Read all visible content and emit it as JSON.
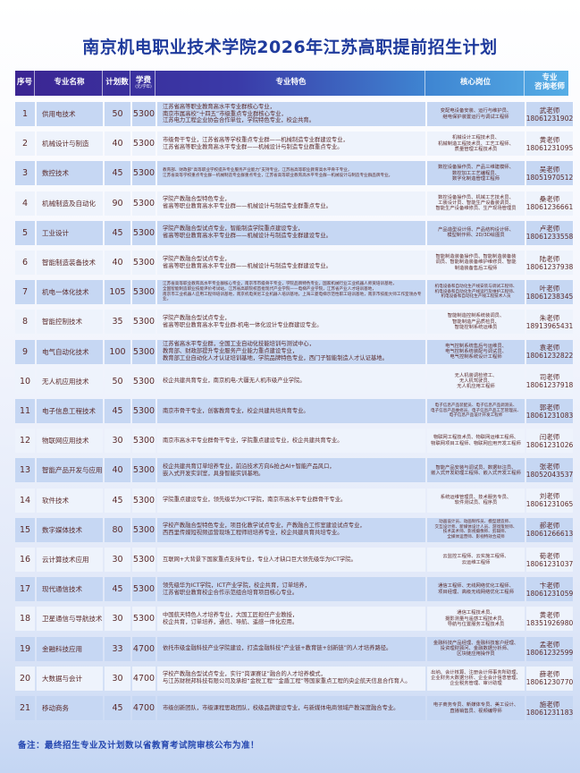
{
  "title": "南京机电职业技术学院2026年江苏高职提前招生计划",
  "headers": {
    "num": "序号",
    "name": "专业名称",
    "plan": "计划数",
    "fee": "学费",
    "fee_unit": "(元/学年)",
    "features": "专业特色",
    "positions": "核心岗位",
    "teacher_1": "专业",
    "teacher_2": "咨询老师"
  },
  "colors": {
    "header_start": "#3b2592",
    "header_end": "#56aee6",
    "row_odd": "#c6d7f3",
    "row_even": "#eef3fc",
    "title": "#1e3a9c",
    "text": "#5b2b2b"
  },
  "rows": [
    {
      "num": "1",
      "name": "供用电技术",
      "plan": "50",
      "fee": "5300",
      "features": [
        "江苏省高等职业教育高水平专业群核心专业，",
        "南京市属高校“十四五”市级重点专业群核心专业，",
        "江苏电力工程企业协会合作单位，学院特色专业，校企共育。"
      ],
      "positions": [
        "变配电设备安装、运行与维护员、",
        "继电保护装置运行与调试工程师"
      ],
      "teacher": "武老师",
      "phone": "18061231902"
    },
    {
      "num": "2",
      "name": "机械设计与制造",
      "plan": "40",
      "fee": "5300",
      "features": [
        "市级骨干专业，江苏省高等学校重点专业群——机械制造专业群建设专业，",
        "江苏省高等职业教育高水平专业群——机械设计与制造专业群重点专业。"
      ],
      "positions": [
        "机械设计工程技术员、",
        "机械制造工程技术员、工艺工程师、",
        "质量管理工程技术员"
      ],
      "teacher": "黄老师",
      "phone": "18061231095"
    },
    {
      "num": "3",
      "name": "数控技术",
      "plan": "45",
      "fee": "5300",
      "tiny": true,
      "features": [
        "教育部、财政部“高等职业学校提升专业服务产业能力”支持专业，江苏省高等职业教育高水平骨干专业，",
        "江苏省高等学校重点专业群—机械制造专业群重点专业，江苏省高等职业教育高水平专业群—机械设计与制造专业群品牌专业。"
      ],
      "positions": [
        "数控设备操作员、产品三维建模师、",
        "数控加工工艺编程员、",
        "数字化制造管理工程师"
      ],
      "teacher": "吴老师",
      "phone": "18051970512"
    },
    {
      "num": "4",
      "name": "机械制造及自动化",
      "plan": "90",
      "fee": "5300",
      "features": [
        "学院产教融合型特色专业，",
        "省高等职业教育高水平专业群——机械设计与制造专业群重点专业。"
      ],
      "positions": [
        "数控设备操作员、机械工艺技术员、",
        "工装设计员、智能生产设备装调员、",
        "智能生产设备维修员、生产现场管理员"
      ],
      "teacher": "桑老师",
      "phone": "18061236661"
    },
    {
      "num": "5",
      "name": "工业设计",
      "plan": "45",
      "fee": "5300",
      "features": [
        "学院产教融合型试点专业，智能制造学院重点建设专业，",
        "省高等职业教育高水平专业群——机械设计与制造专业群建设专业。"
      ],
      "positions": [
        "产品造型设计师、产品结构设计师、",
        "模型制作师、2D/3D绘图员"
      ],
      "teacher": "卢老师",
      "phone": "18061233558"
    },
    {
      "num": "6",
      "name": "智能制造装备技术",
      "plan": "40",
      "fee": "5300",
      "features": [
        "学院产教融合型试点专业，",
        "省高等职业教育高水平专业群——机械设计与制造专业群建设专业。"
      ],
      "positions": [
        "智能制造装备操作员、智能制造装备装",
        "调员、智能制造装备维护维修员、智能",
        "制造装备售后工程师"
      ],
      "teacher": "陆老师",
      "phone": "18061237938"
    },
    {
      "num": "7",
      "name": "机电一体化技术",
      "plan": "105",
      "fee": "5300",
      "tiny": true,
      "features": [
        "江苏省高等职业教育高水平专业群核心专业，南京市市级骨干专业，学院品牌特色专业，国家机械行业工业机器人师资培训基地，",
        "全国智能制造职业技能评价考试站，江苏省高职院校首批现代产业学院——电梯产业学院，江苏省产业人才培训基地，",
        "南京市工业机器人应用工程师培训基地，南京机电英尼工业机器人培训基地，上海三菱电梯示范性职工培训基地，南京市技能大师工作室领办专业。"
      ],
      "positions": [
        "机电设备和自动化生产线安装与调试工程师、",
        "机电设备和自动化生产线运行及维护工程师、",
        "机电设备和自动化生产线工程技术人员"
      ],
      "posTiny": true,
      "teacher": "叶老师",
      "phone": "18061238345"
    },
    {
      "num": "8",
      "name": "智能控制技术",
      "plan": "35",
      "fee": "5300",
      "features": [
        "学院产教融合型试点专业，",
        "省高等职业教育高水平专业群-机电一体化设计专业群建设专业。"
      ],
      "positions": [
        "智能制造控制系统装调员、",
        "智能制造产品质检员、",
        "智能控制系统运维员"
      ],
      "teacher": "朱老师",
      "phone": "18913965431"
    },
    {
      "num": "9",
      "name": "电气自动化技术",
      "plan": "100",
      "fee": "5300",
      "features": [
        "江苏省高水平专业群，全国工业自动化技能培训与测试中心，",
        "教育部、财政部提升专业服务产业能力重点建设专业，",
        "教育部工业自动化人才认证培训基地，学院品牌特色专业，西门子智能制造人才认证基地。"
      ],
      "positions": [
        "电气控制系统售后与运维员、",
        "电气控制系统装配与调试员、",
        "电气控制系统设计工程师"
      ],
      "teacher": "袁老师",
      "phone": "18061232822"
    },
    {
      "num": "10",
      "name": "无人机应用技术",
      "plan": "50",
      "fee": "5300",
      "features": [
        "校企共建共育专业，南京机电-大疆无人机市级产业学院。"
      ],
      "positions": [
        "无人机装调检修工、",
        "无人机驾驶员、",
        "无人机应用工程师"
      ],
      "teacher": "司老师",
      "phone": "18061237918"
    },
    {
      "num": "11",
      "name": "电子信息工程技术",
      "plan": "45",
      "fee": "5300",
      "features": [
        "南京市骨干专业，创客教育专业，校企共建共培共育专业。"
      ],
      "positions": [
        "电子信息产品装配员、电子信息产品调测员、",
        "电子信息产品维修员、电子信息产品工艺管理员、",
        "电子信息产品设计开发工程师"
      ],
      "posTiny": true,
      "teacher": "郭老师",
      "phone": "18061231083"
    },
    {
      "num": "12",
      "name": "物联网应用技术",
      "plan": "30",
      "fee": "5300",
      "features": [
        "南京市高水平专业群骨干专业，学院重点建设专业，校企共建共育专业。"
      ],
      "positions": [
        "物联网工程技术员、物联网运维工程师、",
        "物联网项目工程师、物联网应用开发工程师"
      ],
      "teacher": "闫老师",
      "phone": "18061231026"
    },
    {
      "num": "13",
      "name": "智能产品开发与应用",
      "plan": "40",
      "fee": "5300",
      "features": [
        "校企共建共育订单培养专业，前沿技术方向&抢占AI+智能产品风口，",
        "嵌入式开发实训室，具身智能实训基地。"
      ],
      "positions": [
        "智能产品安装与调试员、数据标注员、",
        "嵌入式开发助理工程师、嵌入式开发工程师"
      ],
      "teacher": "张老师",
      "phone": "18052043537"
    },
    {
      "num": "14",
      "name": "软件技术",
      "plan": "45",
      "fee": "5300",
      "features": [
        "学院重点建设专业，领先级华为ICT学院，南京市高水平专业群骨干专业。"
      ],
      "positions": [
        "系统运维管理员、技术服务专员、",
        "软件测试员、程序员"
      ],
      "teacher": "刘老师",
      "phone": "18061231065"
    },
    {
      "num": "15",
      "name": "数字媒体技术",
      "plan": "80",
      "fee": "5300",
      "features": [
        "学校产教融合型特色专业，项目化教学试点专业，产教融合工作室建设试点专业，",
        "西西里传媒短视频运营现场工程师班培养专业，校企共建共育共培专业。"
      ],
      "positions": [
        "动画设计员、动画制作员、模型建造师、",
        "交互设计师、新媒体设计人员、游戏策划师、",
        "技术美术师、影视摄像师、剪辑师、",
        "全媒体运营师、影视特效合成师"
      ],
      "posTiny": true,
      "teacher": "郝老师",
      "phone": "18061266613"
    },
    {
      "num": "16",
      "name": "云计算技术应用",
      "plan": "30",
      "fee": "5300",
      "features": [
        "互联网+大背景下国家重点支持专业，专业人才缺口巨大领先级华为ICT学院。"
      ],
      "positions": [
        "云监控工程师、云实施工程师、",
        "云运维工程师"
      ],
      "teacher": "荀老师",
      "phone": "18061231037"
    },
    {
      "num": "17",
      "name": "现代通信技术",
      "plan": "45",
      "fee": "5300",
      "features": [
        "领先级华为ICT学院，ICT产业学院，校企共育，订单培养，",
        "江苏省职业教育校企合作示范组合培育项目核心专业。"
      ],
      "positions": [
        "通信工程师、无线网络优化工程师、",
        "项目经理、高级无线网络优化工程师"
      ],
      "teacher": "卞老师",
      "phone": "18061231059"
    },
    {
      "num": "18",
      "name": "卫星通信与导航技术",
      "plan": "30",
      "fee": "5300",
      "features": [
        "中国航天特色人才培养专业，大国工匠担任产业教授，",
        "校企共育，订单培养，通信、导航、遥感一体化应用。"
      ],
      "positions": [
        "通信工程技术员、",
        "摄影测量与遥感工程技术员、",
        "导航与位置服务工程技术员"
      ],
      "teacher": "黄老师",
      "phone": "18351926980"
    },
    {
      "num": "19",
      "name": "金融科技应用",
      "plan": "33",
      "fee": "4700",
      "features": [
        "依托市级金融科技产业学院建设，打造金融科技“产业链+教育链+创新链”的人才培养路径。"
      ],
      "positions": [
        "金融科技产品经理、金融科技客户经理、",
        "投资理财顾问、金融数据分析师、",
        "区块链应用操作员"
      ],
      "teacher": "孟老师",
      "phone": "18061232599"
    },
    {
      "num": "20",
      "name": "大数据与会计",
      "plan": "30",
      "fee": "4700",
      "features": [
        "学校产教融合型试点专业，实行“岗课赛证”融合的人才培养模式，",
        "与江苏财税邦科技有限公司及承担“金税工程”“金盾工程”等国家重点工程的央企航天信息合作育人。"
      ],
      "positions": [
        "出纳、会计核算、注册会计师事务所助理、",
        "企业财务大数据分析、企业会计信息管理、",
        "企业税务管理、审计助理"
      ],
      "teacher": "薛老师",
      "phone": "18061230770"
    },
    {
      "num": "21",
      "name": "移动商务",
      "plan": "45",
      "fee": "4700",
      "features": [
        "市级创新团队，市级课程思政团队，校级品牌建设专业，与新媒体电商领域产教深度融合专业。"
      ],
      "positions": [
        "电子商务专员、新媒体专员、美工设计、",
        "直播销售员、视频编导师"
      ],
      "teacher": "施老师",
      "phone": "18061231183"
    }
  ],
  "note": "备注：最终招生专业及计划数以省教育考试院审核公布为准！"
}
